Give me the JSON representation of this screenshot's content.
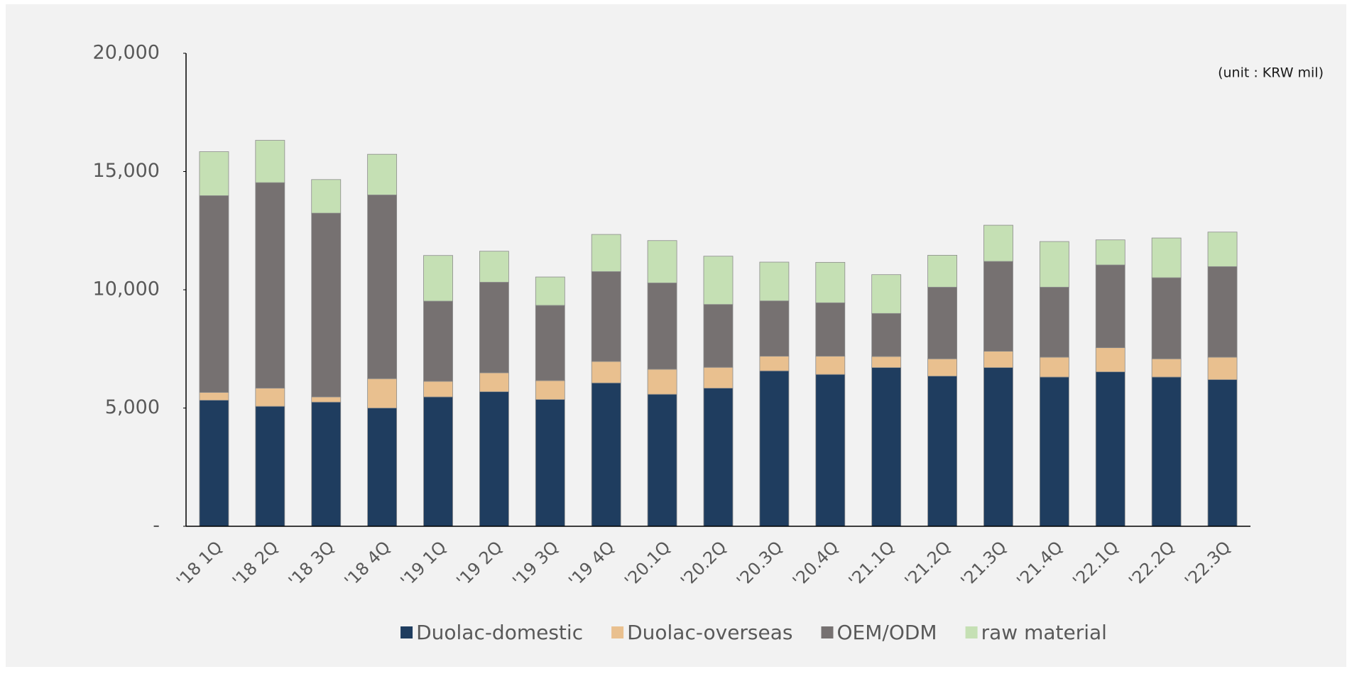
{
  "chart_data": {
    "type": "stacked_bar",
    "annotation": "(unit : KRW mil)",
    "categories": [
      "'18 1Q",
      "'18 2Q",
      "'18 3Q",
      "'18 4Q",
      "'19 1Q",
      "'19 2Q",
      "'19 3Q",
      "'19 4Q",
      "'20.1Q",
      "'20.2Q",
      "'20.3Q",
      "'20.4Q",
      "'21.1Q",
      "'21.2Q",
      "'21.3Q",
      "'21.4Q",
      "'22.1Q",
      "'22.2Q",
      "'22.3Q"
    ],
    "series": [
      {
        "name": "Duolac-domestic",
        "color": "#1f3d5f",
        "values": [
          5330,
          5070,
          5250,
          5000,
          5470,
          5690,
          5360,
          6060,
          5580,
          5840,
          6570,
          6420,
          6710,
          6350,
          6710,
          6310,
          6530,
          6310,
          6200
        ]
      },
      {
        "name": "Duolac-overseas",
        "color": "#e9c08f",
        "values": [
          330,
          770,
          220,
          1240,
          660,
          800,
          800,
          910,
          1060,
          880,
          620,
          770,
          470,
          730,
          690,
          840,
          1020,
          770,
          950
        ]
      },
      {
        "name": "OEM/ODM",
        "color": "#767171",
        "values": [
          8320,
          8690,
          7770,
          7770,
          3390,
          3830,
          3180,
          3800,
          3650,
          2660,
          2340,
          2260,
          1820,
          3030,
          3800,
          2960,
          3500,
          3430,
          3830
        ]
      },
      {
        "name": "raw material",
        "color": "#c5e0b4",
        "values": [
          1860,
          1790,
          1420,
          1720,
          1930,
          1310,
          1200,
          1570,
          1790,
          2040,
          1640,
          1710,
          1640,
          1350,
          1530,
          1930,
          1060,
          1680,
          1460
        ]
      }
    ],
    "ylim": [
      0,
      20000
    ],
    "yticks": [
      {
        "value": 0,
        "label": "-"
      },
      {
        "value": 5000,
        "label": "5,000"
      },
      {
        "value": 10000,
        "label": "10,000"
      },
      {
        "value": 15000,
        "label": "15,000"
      },
      {
        "value": 20000,
        "label": "20,000"
      }
    ],
    "grid": false,
    "legend": "bottom"
  }
}
